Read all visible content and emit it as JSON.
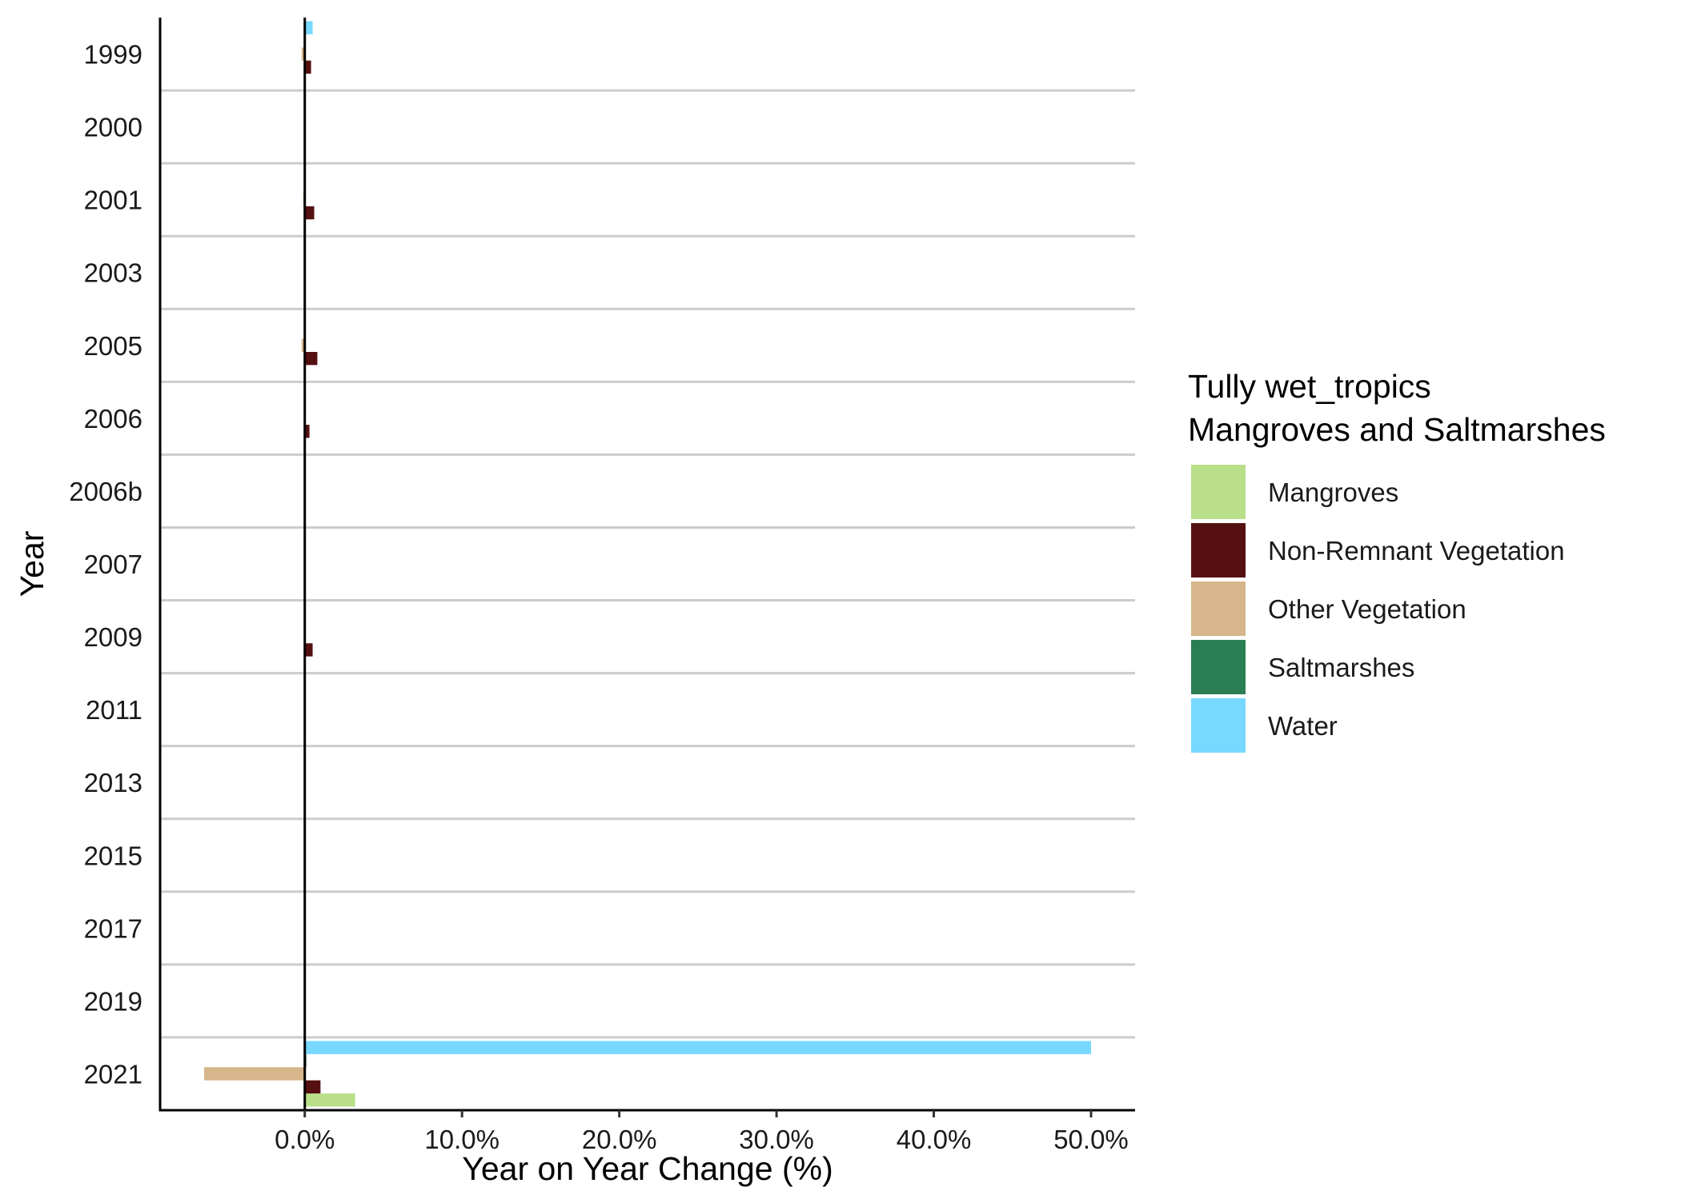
{
  "chart_data": {
    "type": "bar",
    "orientation": "horizontal",
    "xlabel": "Year on Year Change (%)",
    "ylabel": "Year",
    "xlim": [
      -9.2,
      52.8
    ],
    "xticks": [
      0,
      10,
      20,
      30,
      40,
      50
    ],
    "xtick_labels": [
      "0.0%",
      "10.0%",
      "20.0%",
      "30.0%",
      "40.0%",
      "50.0%"
    ],
    "categories": [
      "1999",
      "2000",
      "2001",
      "2003",
      "2005",
      "2006",
      "2006b",
      "2007",
      "2009",
      "2011",
      "2013",
      "2015",
      "2017",
      "2019",
      "2021"
    ],
    "grid": "horizontal lines between categories",
    "legend": {
      "title_lines": [
        "Tully wet_tropics",
        "Mangroves and Saltmarshes"
      ],
      "placement": "right"
    },
    "series": [
      {
        "name": "Mangroves",
        "color": "#b9df8a",
        "values": [
          0,
          0,
          0,
          0,
          0,
          0,
          0,
          0,
          0,
          0,
          0,
          0,
          0,
          0,
          3.2
        ]
      },
      {
        "name": "Non-Remnant Vegetation",
        "color": "#561012",
        "values": [
          0.4,
          0,
          0.6,
          0,
          0.8,
          0.3,
          0,
          0,
          0.5,
          0,
          0,
          0,
          0,
          0,
          1.0
        ]
      },
      {
        "name": "Other Vegetation",
        "color": "#d6b68a",
        "values": [
          -0.2,
          0,
          -0.1,
          0,
          -0.2,
          0,
          0,
          0,
          0,
          0,
          0,
          0,
          0,
          0,
          -6.4
        ]
      },
      {
        "name": "Saltmarshes",
        "color": "#2a7e54",
        "values": [
          0,
          0,
          0,
          0,
          0,
          0,
          0,
          0,
          0,
          0,
          0,
          0,
          0,
          0,
          0.1
        ]
      },
      {
        "name": "Water",
        "color": "#77d9ff",
        "values": [
          0.5,
          0,
          0,
          0,
          0,
          0,
          0,
          0,
          0,
          0,
          0,
          0,
          0,
          0,
          50.0
        ]
      }
    ]
  }
}
